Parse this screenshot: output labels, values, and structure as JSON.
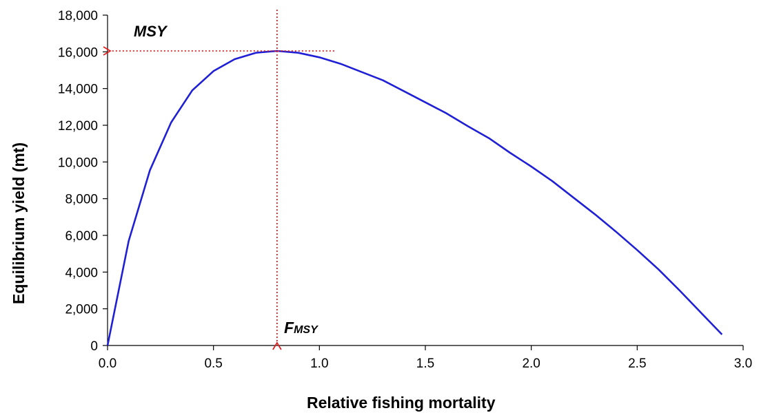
{
  "chart_data": {
    "type": "line",
    "title": "",
    "xlabel": "Relative fishing mortality",
    "ylabel": "Equilibrium yield (mt)",
    "xlim": [
      0,
      3
    ],
    "ylim": [
      0,
      18000
    ],
    "xticks": [
      "0.0",
      "0.5",
      "1.0",
      "1.5",
      "2.0",
      "2.5",
      "3.0"
    ],
    "yticks": [
      "0",
      "2,000",
      "4,000",
      "6,000",
      "8,000",
      "10,000",
      "12,000",
      "14,000",
      "16,000",
      "18,000"
    ],
    "grid": false,
    "legend": "none",
    "series": [
      {
        "color": "#1f1fd6",
        "x": [
          0.0,
          0.1,
          0.2,
          0.3,
          0.4,
          0.5,
          0.6,
          0.7,
          0.8,
          0.9,
          1.0,
          1.1,
          1.2,
          1.3,
          1.4,
          1.5,
          1.6,
          1.7,
          1.8,
          1.9,
          2.0,
          2.1,
          2.2,
          2.3,
          2.4,
          2.5,
          2.6,
          2.7,
          2.8,
          2.9
        ],
        "y": [
          0,
          5700,
          9550,
          12150,
          13900,
          14950,
          15600,
          15950,
          16050,
          15950,
          15700,
          15350,
          14900,
          14450,
          13850,
          13250,
          12650,
          11950,
          11300,
          10500,
          9750,
          8950,
          8050,
          7150,
          6200,
          5200,
          4150,
          3000,
          1800,
          600
        ]
      }
    ],
    "annotations": {
      "msy": {
        "label": "MSY",
        "y": 16050,
        "x_from": 1.07,
        "x_to": 0.0,
        "color": "#e02020"
      },
      "fmsy": {
        "label_main": "F",
        "label_sub": "MSY",
        "x": 0.8,
        "y_from": 18300,
        "y_to": 0,
        "color": "#e02020"
      }
    }
  }
}
